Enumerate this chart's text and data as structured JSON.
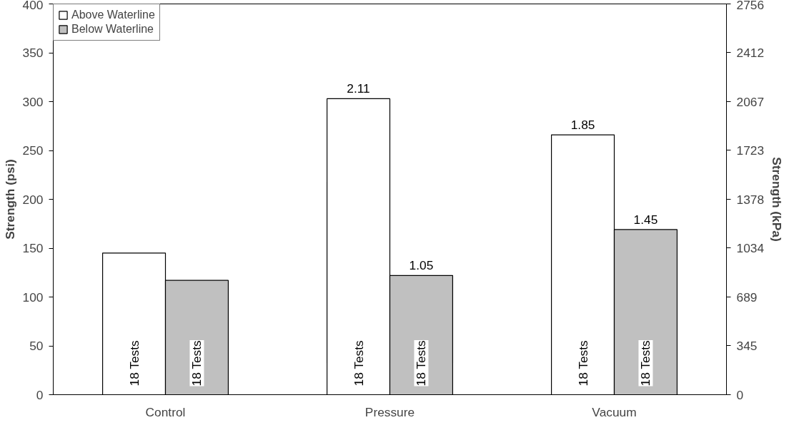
{
  "chart_data": {
    "type": "bar",
    "categories": [
      "Control",
      "Pressure",
      "Vacuum"
    ],
    "ylabel": "Strength (psi)",
    "y2label": "Strength (kPa)",
    "ylim": [
      0,
      400
    ],
    "yticks": [
      0,
      50,
      100,
      150,
      200,
      250,
      300,
      350,
      400
    ],
    "y2lim": [
      0,
      2756
    ],
    "y2ticks": [
      0,
      345,
      689,
      1034,
      1378,
      1723,
      2067,
      2412,
      2756
    ],
    "series": [
      {
        "name": "Above Waterline",
        "color": "#ffffff",
        "values": [
          145,
          303,
          266
        ]
      },
      {
        "name": "Below Waterline",
        "color": "#c0c0c0",
        "values": [
          117,
          122,
          169
        ]
      }
    ],
    "annotations": [
      "18 Tests",
      "18 Tests",
      "18 Tests",
      "18 Tests",
      "18 Tests",
      "18 Tests",
      {
        "text": "2.11",
        "x": "Pressure",
        "y": 303
      },
      {
        "text": "1.85",
        "x": "Vacuum",
        "y": 266
      },
      {
        "text": "1.05",
        "x": "Pressure",
        "y": 122
      },
      {
        "text": "1.45",
        "x": "Vacuum",
        "y": 169
      }
    ],
    "legend": "top left",
    "grid": false
  }
}
